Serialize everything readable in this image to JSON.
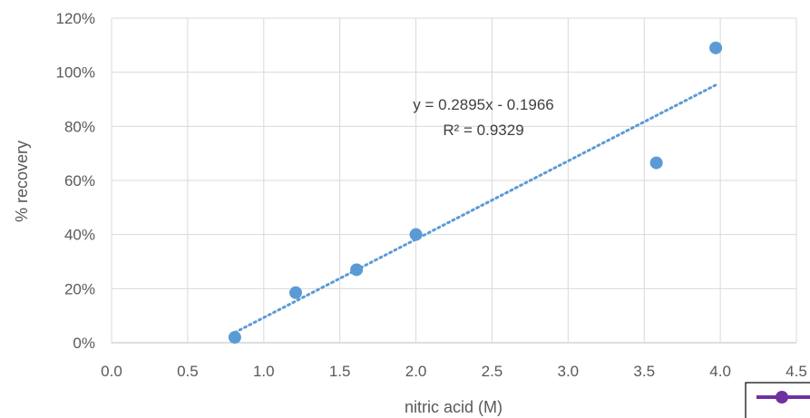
{
  "chart_data": {
    "type": "scatter",
    "title": "",
    "xlabel": "nitric acid (M)",
    "ylabel": "% recovery",
    "xlim": [
      0,
      4.5
    ],
    "ylim": [
      0,
      1.2
    ],
    "x_ticks": [
      "0.0",
      "0.5",
      "1.0",
      "1.5",
      "2.0",
      "2.5",
      "3.0",
      "3.5",
      "4.0",
      "4.5"
    ],
    "y_ticks": [
      "0%",
      "20%",
      "40%",
      "60%",
      "80%",
      "100%",
      "120%"
    ],
    "grid": true,
    "series": [
      {
        "points": [
          {
            "x": 0.81,
            "y": 0.02
          },
          {
            "x": 1.21,
            "y": 0.185
          },
          {
            "x": 1.61,
            "y": 0.27
          },
          {
            "x": 2.0,
            "y": 0.4
          },
          {
            "x": 3.58,
            "y": 0.665
          },
          {
            "x": 3.97,
            "y": 1.09
          }
        ],
        "color": "#5B9BD5"
      }
    ],
    "trendline": {
      "slope": 0.2895,
      "intercept": -0.1966,
      "x_range": [
        0.81,
        3.97
      ],
      "equation_text": "y = 0.2895x - 0.1966",
      "r2_text": "R² = 0.9329",
      "color": "#5B9BD5"
    },
    "legend_fragment": {
      "color": "#7030A0"
    }
  }
}
